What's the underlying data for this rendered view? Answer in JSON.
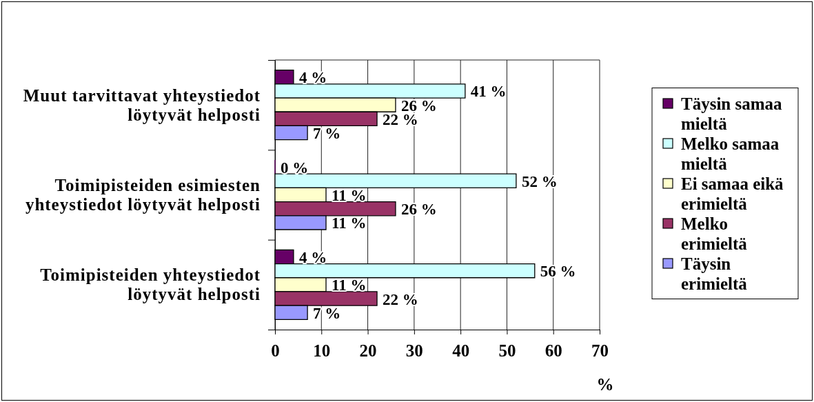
{
  "chart_data": {
    "type": "bar",
    "orientation": "horizontal",
    "categories": [
      "Muut tarvittavat yhteystiedot löytyvät helposti",
      "Toimipisteiden esimiesten yhteystiedot löytyvät helposti",
      "Toimipisteiden yhteystiedot löytyvät helposti"
    ],
    "series": [
      {
        "name": "Täysin samaa mieltä",
        "color": "#660066",
        "values": [
          4,
          0,
          4
        ],
        "value_labels": [
          "4 %",
          "0 %",
          "4 %"
        ]
      },
      {
        "name": "Melko samaa mieltä",
        "color": "#ccffff",
        "values": [
          41,
          52,
          56
        ],
        "value_labels": [
          "41 %",
          "52 %",
          "56 %"
        ]
      },
      {
        "name": "Ei samaa eikä erimieltä",
        "color": "#ffffcc",
        "values": [
          26,
          11,
          11
        ],
        "value_labels": [
          "26 %",
          "11 %",
          "11 %"
        ]
      },
      {
        "name": "Melko erimieltä",
        "color": "#993366",
        "values": [
          22,
          26,
          22
        ],
        "value_labels": [
          "22 %",
          "26 %",
          "22 %"
        ]
      },
      {
        "name": "Täysin erimieltä",
        "color": "#9999ff",
        "values": [
          7,
          11,
          7
        ],
        "value_labels": [
          "7 %",
          "11 %",
          "7 %"
        ]
      }
    ],
    "xlim": [
      0,
      70
    ],
    "xticks": [
      0,
      10,
      20,
      30,
      40,
      50,
      60,
      70
    ],
    "xlabel": "%",
    "grid": "x",
    "legend": "right"
  }
}
